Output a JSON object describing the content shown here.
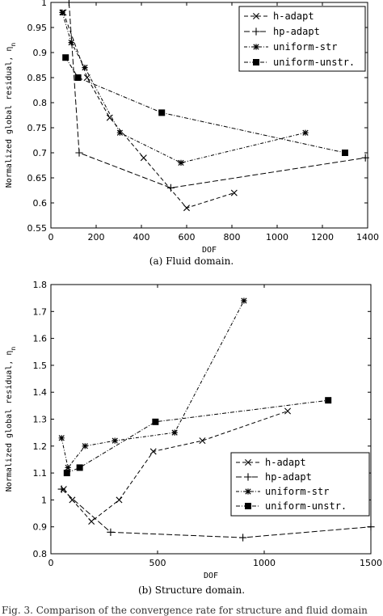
{
  "chart_data": [
    {
      "type": "line",
      "caption": "(a) Fluid domain.",
      "xlabel": "DOF",
      "ylabel": "Normalized global residual, η",
      "ylabel_sub": "n",
      "xlim": [
        0,
        1400
      ],
      "ylim": [
        0.55,
        1.0
      ],
      "xticks": [
        0,
        200,
        400,
        600,
        800,
        1000,
        1200,
        1400
      ],
      "yticks": [
        0.55,
        0.6,
        0.65,
        0.7,
        0.75,
        0.8,
        0.85,
        0.9,
        0.95,
        1.0
      ],
      "ytick_labels": [
        "0.55",
        "0.6",
        "0.65",
        "0.7",
        "0.75",
        "0.8",
        "0.85",
        "0.9",
        "0.95",
        "1"
      ],
      "legend_position": "top-right",
      "series": [
        {
          "name": "h-adapt",
          "marker": "x",
          "x": [
            55,
            160,
            260,
            410,
            600,
            810
          ],
          "y": [
            0.98,
            0.85,
            0.77,
            0.69,
            0.59,
            0.62
          ]
        },
        {
          "name": "hp-adapt",
          "marker": "+",
          "x": [
            80,
            125,
            530,
            1390
          ],
          "y": [
            1.0,
            0.7,
            0.63,
            0.69
          ]
        },
        {
          "name": "uniform-str",
          "marker": "star",
          "x": [
            50,
            90,
            150,
            305,
            575,
            1125
          ],
          "y": [
            0.98,
            0.92,
            0.87,
            0.74,
            0.68,
            0.74
          ]
        },
        {
          "name": "uniform-unstr.",
          "marker": "square",
          "x": [
            65,
            120,
            490,
            1300
          ],
          "y": [
            0.89,
            0.85,
            0.78,
            0.7
          ]
        }
      ]
    },
    {
      "type": "line",
      "caption": "(b) Structure domain.",
      "xlabel": "DOF",
      "ylabel": "Normalized global residual, η",
      "ylabel_sub": "n",
      "xlim": [
        0,
        1500
      ],
      "ylim": [
        0.8,
        1.8
      ],
      "xticks": [
        0,
        500,
        1000,
        1500
      ],
      "yticks": [
        0.8,
        0.9,
        1.0,
        1.1,
        1.2,
        1.3,
        1.4,
        1.5,
        1.6,
        1.7,
        1.8
      ],
      "ytick_labels": [
        "0.8",
        "0.9",
        "1",
        "1.1",
        "1.2",
        "1.3",
        "1.4",
        "1.5",
        "1.6",
        "1.7",
        "1.8"
      ],
      "legend_position": "center-right",
      "series": [
        {
          "name": "h-adapt",
          "marker": "x",
          "x": [
            60,
            100,
            190,
            320,
            480,
            710,
            1110
          ],
          "y": [
            1.04,
            1.0,
            0.92,
            1.0,
            1.18,
            1.22,
            1.33
          ]
        },
        {
          "name": "hp-adapt",
          "marker": "+",
          "x": [
            50,
            280,
            900,
            1500
          ],
          "y": [
            1.04,
            0.88,
            0.86,
            0.9
          ]
        },
        {
          "name": "uniform-str",
          "marker": "star",
          "x": [
            50,
            80,
            160,
            300,
            580,
            905
          ],
          "y": [
            1.23,
            1.12,
            1.2,
            1.22,
            1.25,
            1.74
          ]
        },
        {
          "name": "uniform-unstr.",
          "marker": "square",
          "x": [
            75,
            135,
            490,
            1300
          ],
          "y": [
            1.1,
            1.12,
            1.29,
            1.37
          ]
        }
      ]
    }
  ],
  "figure_caption": "Fig. 3. Comparison of the convergence rate for structure and fluid domain"
}
